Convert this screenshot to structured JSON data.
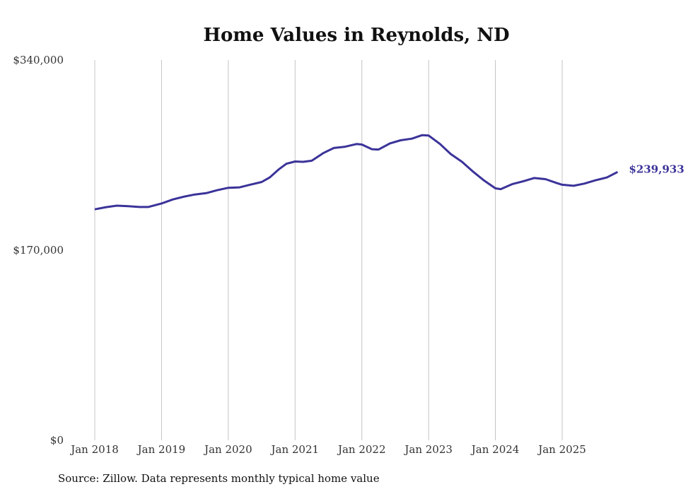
{
  "chart_data": {
    "type": "line",
    "title": "Home Values in Reynolds, ND",
    "xlabel": "",
    "ylabel": "",
    "ylim": [
      0,
      340000
    ],
    "y_ticks": [
      {
        "value": 0,
        "label": "$0"
      },
      {
        "value": 170000,
        "label": "$170,000"
      },
      {
        "value": 340000,
        "label": "$340,000"
      }
    ],
    "x_ticks": [
      {
        "value": 2018,
        "label": "Jan 2018"
      },
      {
        "value": 2019,
        "label": "Jan 2019"
      },
      {
        "value": 2020,
        "label": "Jan 2020"
      },
      {
        "value": 2021,
        "label": "Jan 2021"
      },
      {
        "value": 2022,
        "label": "Jan 2022"
      },
      {
        "value": 2023,
        "label": "Jan 2023"
      },
      {
        "value": 2024,
        "label": "Jan 2024"
      },
      {
        "value": 2025,
        "label": "Jan 2025"
      }
    ],
    "xlim": [
      2018,
      2025.9
    ],
    "grid": "vertical",
    "series": [
      {
        "name": "Typical home value",
        "color": "#3b3399",
        "x": [
          2018.0,
          2018.17,
          2018.33,
          2018.5,
          2018.67,
          2018.8,
          2019.0,
          2019.17,
          2019.33,
          2019.5,
          2019.67,
          2019.83,
          2020.0,
          2020.17,
          2020.33,
          2020.5,
          2020.62,
          2020.75,
          2020.87,
          2021.0,
          2021.12,
          2021.25,
          2021.42,
          2021.58,
          2021.75,
          2021.92,
          2022.0,
          2022.15,
          2022.25,
          2022.42,
          2022.58,
          2022.75,
          2022.9,
          2023.0,
          2023.17,
          2023.33,
          2023.5,
          2023.67,
          2023.83,
          2024.0,
          2024.08,
          2024.25,
          2024.42,
          2024.58,
          2024.75,
          2024.92,
          2025.0,
          2025.17,
          2025.33,
          2025.5,
          2025.67,
          2025.83
        ],
        "values": [
          206500,
          208500,
          209800,
          209300,
          208600,
          208600,
          211800,
          215400,
          217800,
          219800,
          221000,
          223600,
          225800,
          226200,
          228600,
          231000,
          235000,
          242000,
          247300,
          249300,
          249000,
          250000,
          256800,
          261400,
          262500,
          264900,
          264500,
          260300,
          260000,
          265500,
          268300,
          269700,
          272800,
          272500,
          265000,
          256000,
          249000,
          240000,
          232300,
          225300,
          224600,
          229000,
          231700,
          234500,
          233500,
          230000,
          228500,
          227600,
          229500,
          232500,
          235000,
          239933
        ]
      }
    ],
    "end_label": "$239,933"
  },
  "footer": {
    "source": "Source: Zillow. Data represents monthly typical home value"
  }
}
